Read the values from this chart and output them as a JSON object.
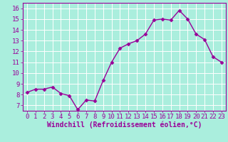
{
  "x": [
    0,
    1,
    2,
    3,
    4,
    5,
    6,
    7,
    8,
    9,
    10,
    11,
    12,
    13,
    14,
    15,
    16,
    17,
    18,
    19,
    20,
    21,
    22,
    23
  ],
  "y": [
    8.2,
    8.5,
    8.5,
    8.7,
    8.1,
    7.9,
    6.6,
    7.5,
    7.4,
    9.3,
    11.0,
    12.3,
    12.7,
    13.0,
    13.6,
    14.9,
    15.0,
    14.9,
    15.8,
    15.0,
    13.6,
    13.1,
    11.5,
    11.0
  ],
  "line_color": "#990099",
  "marker": "D",
  "marker_size": 2.5,
  "bg_color": "#aaeedd",
  "grid_color": "#ffffff",
  "xlabel": "Windchill (Refroidissement éolien,°C)",
  "ylim": [
    6.5,
    16.5
  ],
  "xlim": [
    -0.5,
    23.5
  ],
  "yticks": [
    7,
    8,
    9,
    10,
    11,
    12,
    13,
    14,
    15,
    16
  ],
  "xticks": [
    0,
    1,
    2,
    3,
    4,
    5,
    6,
    7,
    8,
    9,
    10,
    11,
    12,
    13,
    14,
    15,
    16,
    17,
    18,
    19,
    20,
    21,
    22,
    23
  ],
  "xlabel_color": "#990099",
  "tick_color": "#990099",
  "xlabel_fontsize": 7,
  "tick_fontsize": 6.5,
  "linewidth": 1.0
}
